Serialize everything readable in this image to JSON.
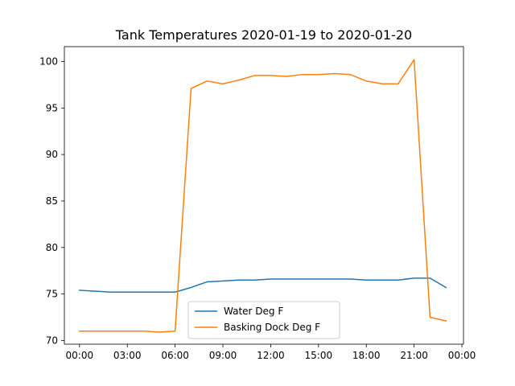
{
  "chart_data": {
    "type": "line",
    "title": "Tank Temperatures 2020-01-19 to 2020-01-20",
    "xlabel": "",
    "ylabel": "",
    "x": [
      0,
      1,
      2,
      3,
      4,
      5,
      6,
      7,
      8,
      9,
      10,
      11,
      12,
      13,
      14,
      15,
      16,
      17,
      18,
      19,
      20,
      21,
      22,
      23
    ],
    "x_unit": "hour",
    "xlim": [
      -0.95,
      24.1
    ],
    "ylim": [
      69.6,
      101.6
    ],
    "x_ticks": [
      0,
      3,
      6,
      9,
      12,
      15,
      18,
      21,
      24
    ],
    "x_tick_labels": [
      "00:00",
      "03:00",
      "06:00",
      "09:00",
      "12:00",
      "15:00",
      "18:00",
      "21:00",
      "00:00"
    ],
    "y_ticks": [
      70,
      75,
      80,
      85,
      90,
      95,
      100
    ],
    "y_tick_labels": [
      "70",
      "75",
      "80",
      "85",
      "90",
      "95",
      "100"
    ],
    "grid": false,
    "legend_position": "lower-center",
    "series": [
      {
        "name": "Water Deg F",
        "color": "#1f77b4",
        "values": [
          75.4,
          75.3,
          75.2,
          75.2,
          75.2,
          75.2,
          75.2,
          75.7,
          76.3,
          76.4,
          76.5,
          76.5,
          76.6,
          76.6,
          76.6,
          76.6,
          76.6,
          76.6,
          76.5,
          76.5,
          76.5,
          76.7,
          76.7,
          75.7
        ]
      },
      {
        "name": "Basking Dock Deg F",
        "color": "#ff7f0e",
        "values": [
          71.0,
          71.0,
          71.0,
          71.0,
          71.0,
          70.9,
          71.0,
          97.1,
          97.9,
          97.6,
          98.0,
          98.5,
          98.5,
          98.4,
          98.6,
          98.6,
          98.7,
          98.6,
          97.9,
          97.6,
          97.6,
          100.2,
          72.5,
          72.1
        ]
      }
    ]
  }
}
